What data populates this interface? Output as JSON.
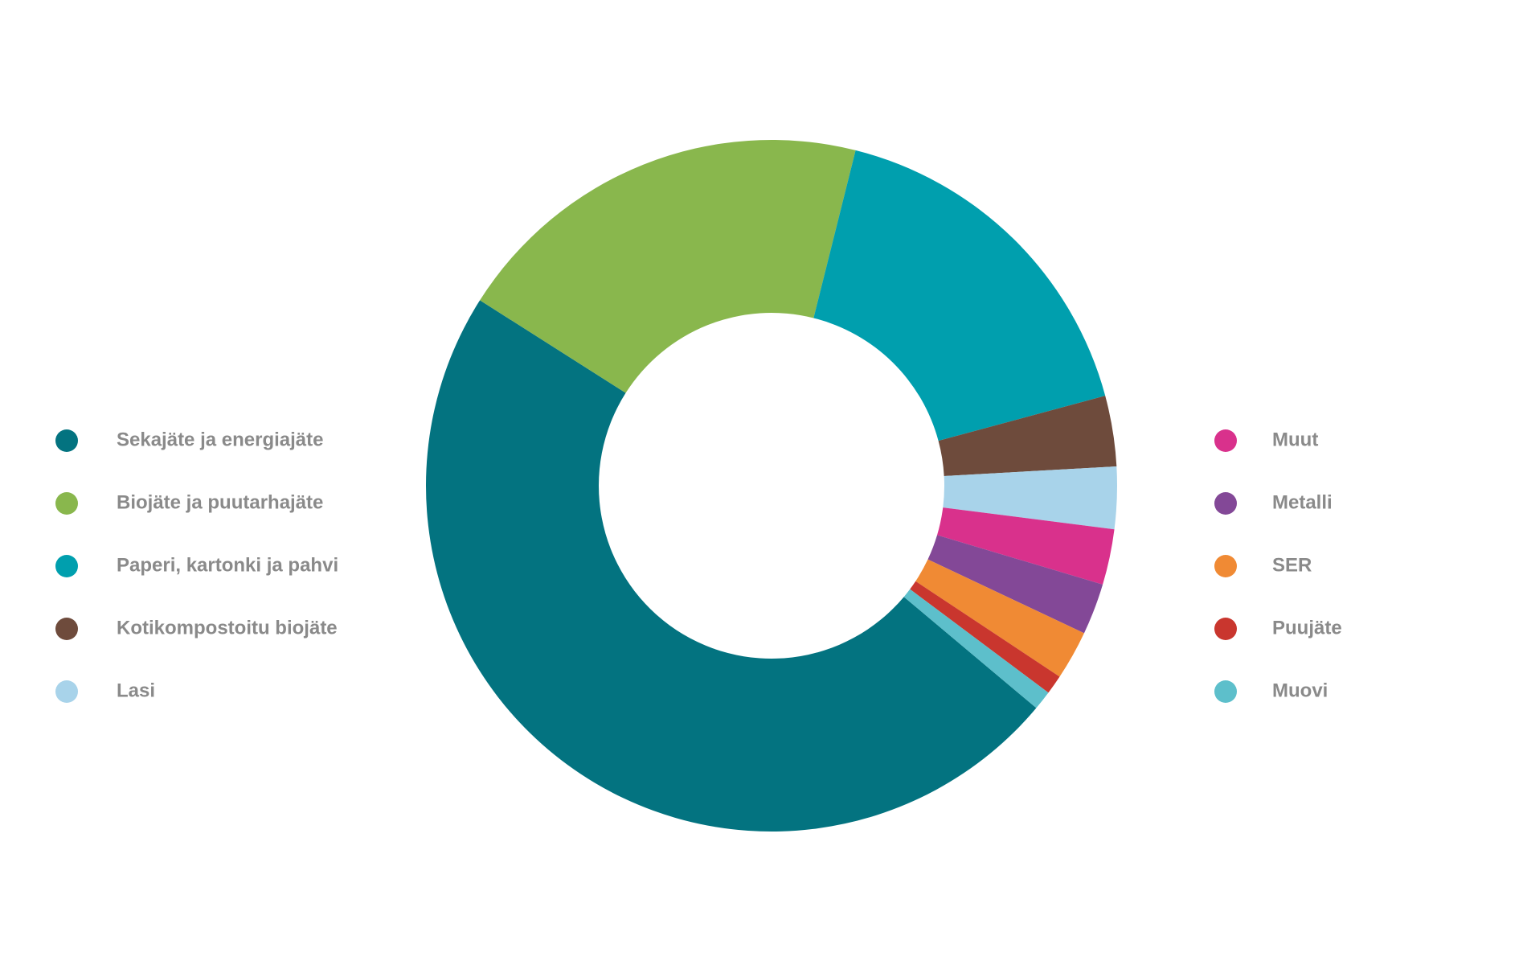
{
  "chart_data": {
    "type": "donut",
    "categories": [
      "Sekajäte ja energiajäte",
      "Biojäte ja puutarhajäte",
      "Paperi, kartonki ja pahvi",
      "Kotikompostoitu biojäte",
      "Lasi",
      "Muut",
      "Metalli",
      "SER",
      "Puujäte",
      "Muovi"
    ],
    "values": [
      47.9,
      19.9,
      16.9,
      3.3,
      2.9,
      2.6,
      2.4,
      2.3,
      0.9,
      0.9
    ],
    "colors": [
      "#037380",
      "#89b74d",
      "#009fae",
      "#6e4b3c",
      "#a8d3ea",
      "#d9318c",
      "#834897",
      "#f08a34",
      "#c9362e",
      "#5dbfcb"
    ]
  }
}
